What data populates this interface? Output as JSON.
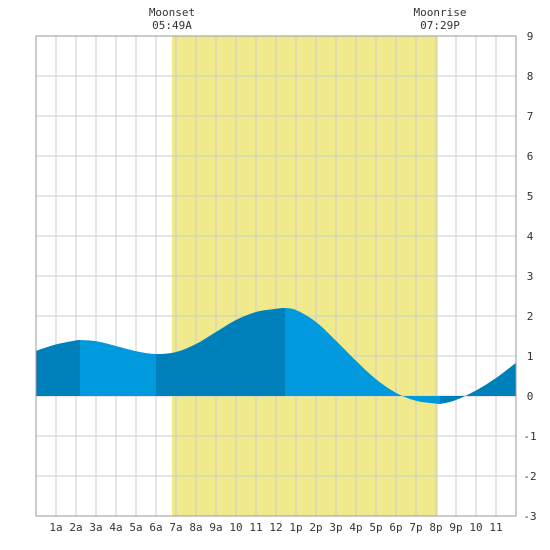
{
  "annotations": {
    "moonset": {
      "label": "Moonset",
      "time": "05:49A"
    },
    "moonrise": {
      "label": "Moonrise",
      "time": "07:29P"
    }
  },
  "colors": {
    "daylight_band": "#f0ea8c",
    "tide_fill_light": "#0099dd",
    "tide_fill_dark": "#0080bb",
    "grid": "#cccccc",
    "axis_text": "#333333"
  },
  "chart_data": {
    "type": "area",
    "title": "",
    "xlabel": "",
    "ylabel": "",
    "xlim": [
      0,
      24
    ],
    "ylim": [
      -3,
      9
    ],
    "grid": true,
    "x_tick_labels": [
      "1a",
      "2a",
      "3a",
      "4a",
      "5a",
      "6a",
      "7a",
      "8a",
      "9a",
      "10",
      "11",
      "12",
      "1p",
      "2p",
      "3p",
      "4p",
      "5p",
      "6p",
      "7p",
      "8p",
      "9p",
      "10",
      "11"
    ],
    "y_tick_labels": [
      "9",
      "8",
      "7",
      "6",
      "5",
      "4",
      "3",
      "2",
      "1",
      "0",
      "-1",
      "-2",
      "-3"
    ],
    "moon_visible_band": [
      6.8,
      20.1
    ],
    "tide_extrema": [
      {
        "time": 2.2,
        "height": 1.4,
        "kind": "high"
      },
      {
        "time": 6.0,
        "height": 1.05,
        "kind": "low"
      },
      {
        "time": 12.45,
        "height": 2.2,
        "kind": "high"
      },
      {
        "time": 20.2,
        "height": -0.2,
        "kind": "low"
      }
    ],
    "series": [
      {
        "x": [
          0,
          1,
          2,
          2.2,
          3,
          4,
          5,
          6,
          7,
          8,
          9,
          10,
          11,
          12,
          12.45,
          13,
          14,
          15,
          16,
          17,
          18,
          19,
          20,
          20.2,
          21,
          22,
          23,
          24
        ],
        "values": [
          1.13,
          1.29,
          1.39,
          1.4,
          1.37,
          1.25,
          1.12,
          1.05,
          1.1,
          1.3,
          1.6,
          1.9,
          2.1,
          2.18,
          2.2,
          2.15,
          1.85,
          1.38,
          0.88,
          0.42,
          0.08,
          -0.12,
          -0.19,
          -0.2,
          -0.1,
          0.14,
          0.45,
          0.83
        ]
      }
    ],
    "shaded_segments_x": [
      [
        0,
        2
      ],
      [
        6,
        12
      ],
      [
        20,
        24
      ]
    ]
  }
}
